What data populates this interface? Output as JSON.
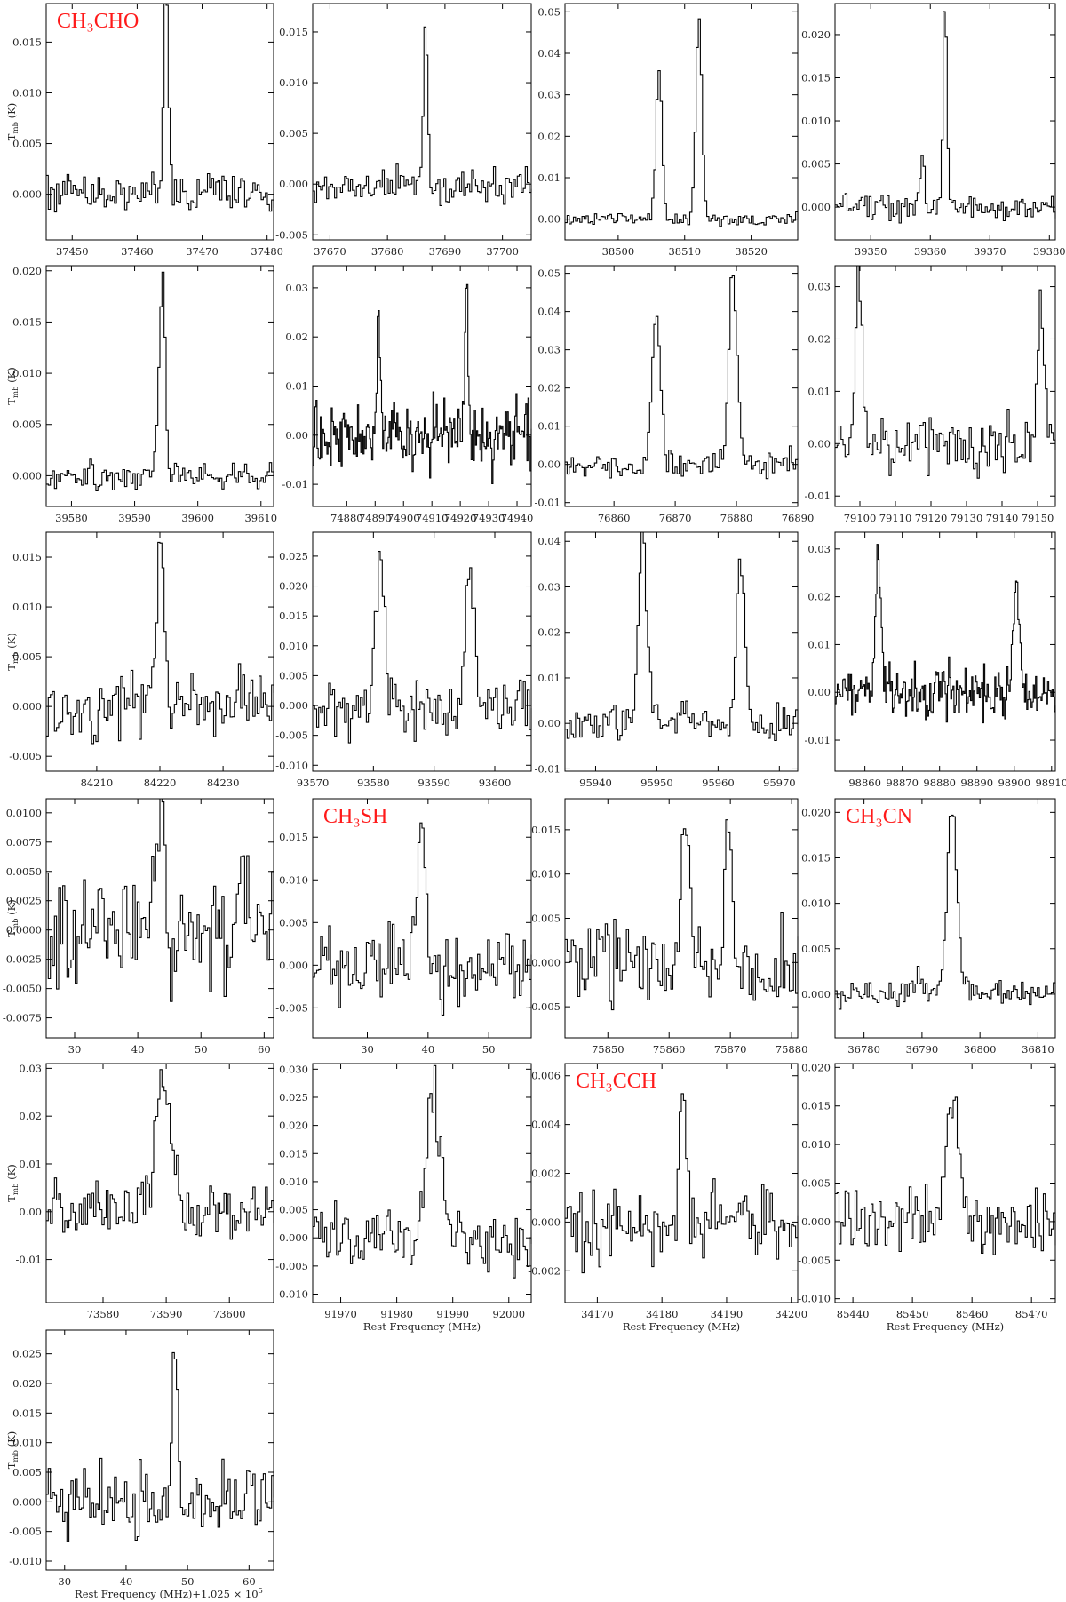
{
  "figure": {
    "y_axis_label": "T",
    "y_axis_label_sub": "mb",
    "y_axis_label_unit": "(K)",
    "x_axis_label": "Rest Frequency (MHz)",
    "x_axis_label_offset": "Rest Frequency (MHz)+1.025 × 10",
    "x_axis_label_offset_exp": "5",
    "species_color": "#ff1a1a"
  },
  "chart_data": [
    {
      "type": "line",
      "species": "CH₃CHO",
      "xlim": [
        37446,
        37481
      ],
      "ylim": [
        -0.0045,
        0.0188
      ],
      "xticks": [
        37450,
        37460,
        37470,
        37480
      ],
      "yticks": [
        0.0,
        0.005,
        0.01,
        0.015
      ],
      "ytick_labels": [
        "0.000",
        "0.005",
        "0.010",
        "0.015"
      ],
      "peaks": [
        {
          "x": 37464.2,
          "y": 0.0175,
          "w": 0.35
        },
        {
          "x": 37464.6,
          "y": 0.004,
          "w": 0.4
        }
      ],
      "noise": 0.0016,
      "seed": 11
    },
    {
      "type": "line",
      "xlim": [
        37667,
        37705
      ],
      "ylim": [
        -0.0055,
        0.0178
      ],
      "xticks": [
        37670,
        37680,
        37690,
        37700
      ],
      "yticks": [
        -0.005,
        0.0,
        0.005,
        0.01,
        0.015
      ],
      "ytick_labels": [
        "-0.005",
        "0.000",
        "0.005",
        "0.010",
        "0.015"
      ],
      "peaks": [
        {
          "x": 37686.5,
          "y": 0.016,
          "w": 0.35
        }
      ],
      "noise": 0.0013,
      "seed": 12
    },
    {
      "type": "line",
      "xlim": [
        38492,
        38527
      ],
      "ylim": [
        -0.005,
        0.052
      ],
      "xticks": [
        38500,
        38510,
        38520
      ],
      "yticks": [
        0.0,
        0.01,
        0.02,
        0.03,
        0.04,
        0.05
      ],
      "ytick_labels": [
        "0.00",
        "0.01",
        "0.02",
        "0.03",
        "0.04",
        "0.05"
      ],
      "peaks": [
        {
          "x": 38506.0,
          "y": 0.036,
          "w": 0.45
        },
        {
          "x": 38512.0,
          "y": 0.049,
          "w": 0.45
        }
      ],
      "noise": 0.0012,
      "seed": 13
    },
    {
      "type": "line",
      "xlim": [
        39344,
        39381
      ],
      "ylim": [
        -0.0038,
        0.0236
      ],
      "xticks": [
        39350,
        39360,
        39370,
        39380
      ],
      "yticks": [
        0.0,
        0.005,
        0.01,
        0.015,
        0.02
      ],
      "ytick_labels": [
        "0.000",
        "0.005",
        "0.010",
        "0.015",
        "0.020"
      ],
      "peaks": [
        {
          "x": 39358.5,
          "y": 0.0055,
          "w": 0.4
        },
        {
          "x": 39362.3,
          "y": 0.0225,
          "w": 0.35
        }
      ],
      "noise": 0.0011,
      "seed": 14
    },
    {
      "type": "line",
      "xlim": [
        39576,
        39612
      ],
      "ylim": [
        -0.003,
        0.0205
      ],
      "xticks": [
        39580,
        39590,
        39600,
        39610
      ],
      "yticks": [
        0.0,
        0.005,
        0.01,
        0.015,
        0.02
      ],
      "ytick_labels": [
        "0.000",
        "0.005",
        "0.010",
        "0.015",
        "0.020"
      ],
      "peaks": [
        {
          "x": 39594.3,
          "y": 0.0195,
          "w": 0.4
        },
        {
          "x": 39593.6,
          "y": 0.005,
          "w": 0.4
        }
      ],
      "noise": 0.0011,
      "seed": 21
    },
    {
      "type": "line",
      "xlim": [
        74868,
        74945
      ],
      "ylim": [
        -0.0145,
        0.0345
      ],
      "xticks": [
        74880,
        74890,
        74900,
        74910,
        74920,
        74930,
        74940
      ],
      "yticks": [
        -0.01,
        0.0,
        0.01,
        0.02,
        0.03
      ],
      "ytick_labels": [
        "-0.01",
        "0.00",
        "0.01",
        "0.02",
        "0.03"
      ],
      "peaks": [
        {
          "x": 74891.0,
          "y": 0.027,
          "w": 0.6
        },
        {
          "x": 74922.0,
          "y": 0.03,
          "w": 0.6
        }
      ],
      "noise": 0.0055,
      "seed": 22,
      "fine": true
    },
    {
      "type": "line",
      "xlim": [
        76852,
        76890
      ],
      "ylim": [
        -0.011,
        0.052
      ],
      "xticks": [
        76860,
        76870,
        76880,
        76890
      ],
      "yticks": [
        -0.01,
        0.0,
        0.01,
        0.02,
        0.03,
        0.04,
        0.05
      ],
      "ytick_labels": [
        "-0.01",
        "0.00",
        "0.01",
        "0.02",
        "0.03",
        "0.04",
        "0.05"
      ],
      "peaks": [
        {
          "x": 76866.8,
          "y": 0.04,
          "w": 0.7
        },
        {
          "x": 76879.2,
          "y": 0.048,
          "w": 0.7
        }
      ],
      "noise": 0.0028,
      "seed": 23
    },
    {
      "type": "line",
      "xlim": [
        79093,
        79155
      ],
      "ylim": [
        -0.012,
        0.034
      ],
      "xticks": [
        79100,
        79110,
        79120,
        79130,
        79140,
        79150
      ],
      "yticks": [
        -0.01,
        0.0,
        0.01,
        0.02,
        0.03
      ],
      "ytick_labels": [
        "-0.01",
        "0.00",
        "0.01",
        "0.02",
        "0.03"
      ],
      "peaks": [
        {
          "x": 79099.5,
          "y": 0.031,
          "w": 0.9
        },
        {
          "x": 79150.5,
          "y": 0.027,
          "w": 0.9
        }
      ],
      "noise": 0.0042,
      "seed": 24
    },
    {
      "type": "line",
      "xlim": [
        84202,
        84238
      ],
      "ylim": [
        -0.0065,
        0.0175
      ],
      "xticks": [
        84210,
        84220,
        84230
      ],
      "yticks": [
        -0.005,
        0.0,
        0.005,
        0.01,
        0.015
      ],
      "ytick_labels": [
        "-0.005",
        "0.000",
        "0.005",
        "0.010",
        "0.015"
      ],
      "peaks": [
        {
          "x": 84220.0,
          "y": 0.016,
          "w": 0.6
        }
      ],
      "noise": 0.0026,
      "seed": 31
    },
    {
      "type": "line",
      "xlim": [
        93570,
        93606
      ],
      "ylim": [
        -0.011,
        0.029
      ],
      "xticks": [
        93570,
        93580,
        93590,
        93600
      ],
      "yticks": [
        -0.01,
        -0.005,
        0.0,
        0.005,
        0.01,
        0.015,
        0.02,
        0.025
      ],
      "ytick_labels": [
        "-0.010",
        "-0.005",
        "0.000",
        "0.005",
        "0.010",
        "0.015",
        "0.020",
        "0.025"
      ],
      "peaks": [
        {
          "x": 93581.0,
          "y": 0.026,
          "w": 0.7
        },
        {
          "x": 93595.8,
          "y": 0.022,
          "w": 0.8
        }
      ],
      "noise": 0.0042,
      "seed": 32
    },
    {
      "type": "line",
      "xlim": [
        95935,
        95973
      ],
      "ylim": [
        -0.0105,
        0.042
      ],
      "xticks": [
        95940,
        95950,
        95960,
        95970
      ],
      "yticks": [
        -0.01,
        0.0,
        0.01,
        0.02,
        0.03,
        0.04
      ],
      "ytick_labels": [
        "-0.01",
        "0.00",
        "0.01",
        "0.02",
        "0.03",
        "0.04"
      ],
      "peaks": [
        {
          "x": 95947.5,
          "y": 0.04,
          "w": 0.7
        },
        {
          "x": 95963.5,
          "y": 0.036,
          "w": 0.7
        }
      ],
      "noise": 0.0032,
      "seed": 33
    },
    {
      "type": "line",
      "xlim": [
        98852,
        98911
      ],
      "ylim": [
        -0.0165,
        0.0335
      ],
      "xticks": [
        98860,
        98870,
        98880,
        98890,
        98900,
        98910
      ],
      "yticks": [
        -0.01,
        0.0,
        0.01,
        0.02,
        0.03
      ],
      "ytick_labels": [
        "-0.01",
        "0.00",
        "0.01",
        "0.02",
        "0.03"
      ],
      "peaks": [
        {
          "x": 98863.5,
          "y": 0.029,
          "w": 0.8
        },
        {
          "x": 98900.5,
          "y": 0.025,
          "w": 0.8
        }
      ],
      "noise": 0.0042,
      "seed": 34,
      "fine": true
    },
    {
      "type": "line",
      "xlim": [
        25.5,
        61.5
      ],
      "ylim": [
        -0.0092,
        0.0112
      ],
      "xticks": [
        30,
        40,
        50,
        60
      ],
      "yticks": [
        -0.0075,
        -0.005,
        -0.0025,
        0.0,
        0.0025,
        0.005,
        0.0075,
        0.01
      ],
      "ytick_labels": [
        "-0.0075",
        "-0.0050",
        "-0.0025",
        "0.0000",
        "0.0025",
        "0.0050",
        "0.0075",
        "0.0100"
      ],
      "peaks": [
        {
          "x": 43.5,
          "y": 0.0105,
          "w": 0.7
        },
        {
          "x": 56.0,
          "y": 0.006,
          "w": 0.7
        }
      ],
      "noise": 0.0038,
      "seed": 41
    },
    {
      "type": "line",
      "species": "CH₃SH",
      "xlim": [
        21,
        57
      ],
      "ylim": [
        -0.0085,
        0.0195
      ],
      "xticks": [
        30,
        40,
        50
      ],
      "yticks": [
        -0.005,
        0.0,
        0.005,
        0.01,
        0.015
      ],
      "ytick_labels": [
        "-0.005",
        "0.000",
        "0.005",
        "0.010",
        "0.015"
      ],
      "peaks": [
        {
          "x": 38.8,
          "y": 0.018,
          "w": 0.7
        }
      ],
      "noise": 0.0035,
      "seed": 42
    },
    {
      "type": "line",
      "xlim": [
        75843,
        75881
      ],
      "ylim": [
        -0.0085,
        0.0185
      ],
      "xticks": [
        75850,
        75860,
        75870,
        75880
      ],
      "yticks": [
        -0.005,
        0.0,
        0.005,
        0.01,
        0.015
      ],
      "ytick_labels": [
        "-0.005",
        "0.000",
        "0.005",
        "0.010",
        "0.015"
      ],
      "peaks": [
        {
          "x": 75862.5,
          "y": 0.016,
          "w": 0.6
        },
        {
          "x": 75869.5,
          "y": 0.015,
          "w": 0.6
        }
      ],
      "noise": 0.0036,
      "seed": 43
    },
    {
      "type": "line",
      "species": "CH₃CN",
      "xlim": [
        36775,
        36813
      ],
      "ylim": [
        -0.0048,
        0.0215
      ],
      "xticks": [
        36780,
        36790,
        36800,
        36810
      ],
      "yticks": [
        0.0,
        0.005,
        0.01,
        0.015,
        0.02
      ],
      "ytick_labels": [
        "0.000",
        "0.005",
        "0.010",
        "0.015",
        "0.020"
      ],
      "peaks": [
        {
          "x": 36795.0,
          "y": 0.02,
          "w": 0.9
        },
        {
          "x": 36789.5,
          "y": 0.002,
          "w": 0.8
        }
      ],
      "noise": 0.0011,
      "seed": 44
    },
    {
      "type": "line",
      "xlim": [
        73571,
        73607
      ],
      "ylim": [
        -0.019,
        0.031
      ],
      "xticks": [
        73580,
        73590,
        73600
      ],
      "yticks": [
        -0.01,
        0.0,
        0.01,
        0.02,
        0.03
      ],
      "ytick_labels": [
        "-0.01",
        "0.00",
        "0.01",
        "0.02",
        "0.03"
      ],
      "peaks": [
        {
          "x": 73589.5,
          "y": 0.028,
          "w": 1.3
        }
      ],
      "noise": 0.0045,
      "seed": 51
    },
    {
      "type": "line",
      "xlim": [
        91965,
        92004
      ],
      "ylim": [
        -0.0115,
        0.031
      ],
      "xticks": [
        91970,
        91980,
        91990,
        92000
      ],
      "yticks": [
        -0.01,
        -0.005,
        0.0,
        0.005,
        0.01,
        0.015,
        0.02,
        0.025,
        0.03
      ],
      "ytick_labels": [
        "-0.010",
        "-0.005",
        "0.000",
        "0.005",
        "0.010",
        "0.015",
        "0.020",
        "0.025",
        "0.030"
      ],
      "peaks": [
        {
          "x": 91986.3,
          "y": 0.026,
          "w": 1.2
        }
      ],
      "noise": 0.004,
      "seed": 52,
      "xlabel": true
    },
    {
      "type": "line",
      "species": "CH₃CCH",
      "xlim": [
        34165,
        34201
      ],
      "ylim": [
        -0.0033,
        0.0065
      ],
      "xticks": [
        34170,
        34180,
        34190,
        34200
      ],
      "yticks": [
        -0.002,
        0.0,
        0.002,
        0.004,
        0.006
      ],
      "ytick_labels": [
        "-0.002",
        "0.000",
        "0.002",
        "0.004",
        "0.006"
      ],
      "peaks": [
        {
          "x": 34183.0,
          "y": 0.0061,
          "w": 0.45
        }
      ],
      "noise": 0.0013,
      "seed": 53,
      "xlabel": true
    },
    {
      "type": "line",
      "xlim": [
        85437,
        85474
      ],
      "ylim": [
        -0.0105,
        0.0205
      ],
      "xticks": [
        85440,
        85450,
        85460,
        85470
      ],
      "yticks": [
        -0.01,
        -0.005,
        0.0,
        0.005,
        0.01,
        0.015,
        0.02
      ],
      "ytick_labels": [
        "-0.010",
        "-0.005",
        "0.000",
        "0.005",
        "0.010",
        "0.015",
        "0.020"
      ],
      "peaks": [
        {
          "x": 85456.8,
          "y": 0.018,
          "w": 1.0
        }
      ],
      "noise": 0.0035,
      "seed": 54,
      "xlabel": true
    },
    {
      "type": "line",
      "xlim": [
        27,
        64
      ],
      "ylim": [
        -0.0115,
        0.029
      ],
      "xticks": [
        30,
        40,
        50,
        60
      ],
      "yticks": [
        -0.01,
        -0.005,
        0.0,
        0.005,
        0.01,
        0.015,
        0.02,
        0.025
      ],
      "ytick_labels": [
        "-0.010",
        "-0.005",
        "0.000",
        "0.005",
        "0.010",
        "0.015",
        "0.020",
        "0.025"
      ],
      "peaks": [
        {
          "x": 47.8,
          "y": 0.027,
          "w": 0.5
        }
      ],
      "noise": 0.0045,
      "seed": 61,
      "xlabel_offset": true
    }
  ]
}
